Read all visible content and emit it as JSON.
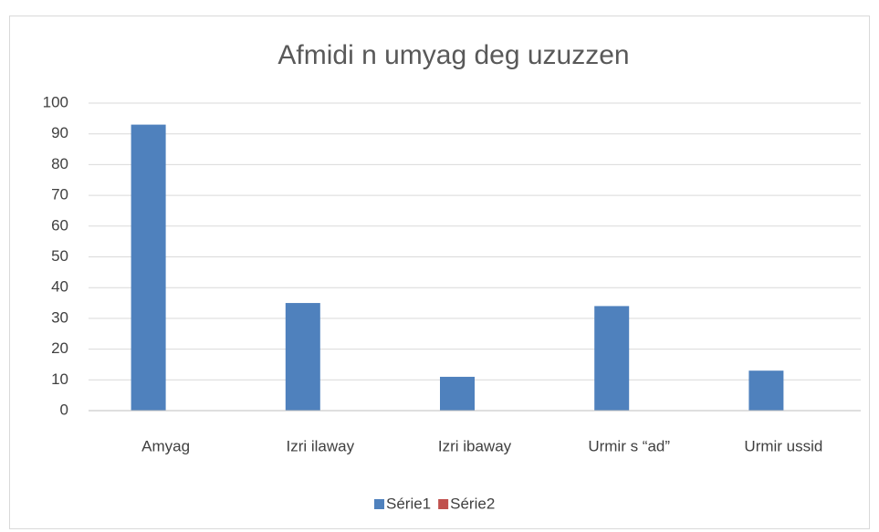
{
  "chart_data": {
    "type": "bar",
    "title": "Afmidi n umyag deg uzuzzen",
    "categories": [
      "Amyag",
      "Izri ilaway",
      "Izri ibaway",
      "Urmir s “ad”",
      "Urmir ussid"
    ],
    "series": [
      {
        "name": "Série1",
        "color": "#4f81bd",
        "values": [
          93,
          35,
          11,
          34,
          13
        ]
      },
      {
        "name": "Série2",
        "color": "#c0504d",
        "values": [
          null,
          null,
          null,
          null,
          null
        ]
      }
    ],
    "ylim": [
      0,
      100
    ],
    "yticks": [
      0,
      10,
      20,
      30,
      40,
      50,
      60,
      70,
      80,
      90,
      100
    ],
    "grid": true,
    "legend": "bottom"
  }
}
